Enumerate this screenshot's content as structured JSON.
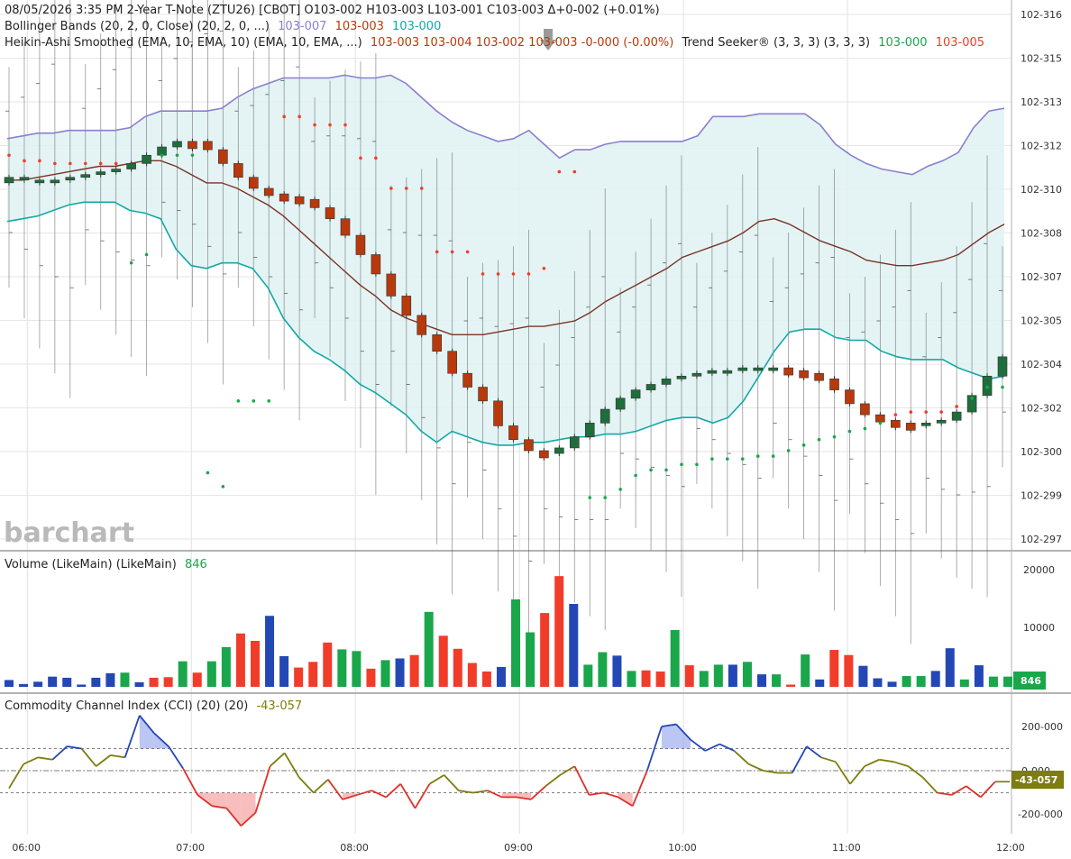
{
  "header": {
    "line1": "08/05/2026  3:35 PM  2-Year T-Note (ZTU26) [CBOT]  O103-002  H103-003  L103-001  C103-003  Δ+0-002 (+0.01%)",
    "bb_label": "Bollinger Bands (20, 2, 0, Close)  (20, 2, 0, ...)",
    "bb_upper": "103-007",
    "bb_mid": "103-003",
    "bb_lower": "103-000",
    "ha_label": "Heikin-Ashi Smoothed (EMA, 10, EMA, 10)  (EMA, 10, EMA, ...)",
    "ha_values": "103-003  103-004  103-002  103-003  -0-000 (-0.00%)",
    "ts_label": "Trend Seeker® (3, 3, 3)  (3, 3, 3)",
    "ts_up": "103-000",
    "ts_down": "103-005"
  },
  "watermark": "barchart",
  "price_axis": [
    "102-316",
    "102-315",
    "102-313",
    "102-312",
    "102-310",
    "102-308",
    "102-307",
    "102-305",
    "102-304",
    "102-302",
    "102-300",
    "102-299",
    "102-297"
  ],
  "volume": {
    "label": "Volume (LikeMain)  (LikeMain)",
    "value": "846",
    "axis": [
      "20000",
      "10000"
    ],
    "tag": "846"
  },
  "cci": {
    "label": "Commodity Channel Index (CCI) (20)  (20)",
    "value": "-43-057",
    "axis": [
      "200-000",
      "0-000",
      "-200-000"
    ],
    "tag": "-43-057"
  },
  "time_axis": [
    "06:00",
    "07:00",
    "08:00",
    "09:00",
    "10:00",
    "11:00",
    "12:00"
  ],
  "colors": {
    "up": "#1aa64a",
    "down": "#f23c2a",
    "neutral": "#2347b5",
    "ha_up": "#1e6e3c",
    "ha_down": "#b8390c",
    "bb_upper": "#8a7fcf",
    "bb_lower": "#12a9a7",
    "bb_mid": "#7a3328",
    "cci": "#7d7d10"
  },
  "chart_data": {
    "type": "candlestick",
    "interval": "5 minutes",
    "price_scale": "32nds",
    "x_start": "05:50",
    "x_end": "12:00",
    "ylim": [
      "102-297",
      "102-316"
    ],
    "bollinger_upper": [
      1.5,
      1.6,
      1.7,
      1.7,
      1.8,
      1.8,
      1.8,
      1.8,
      1.9,
      2.3,
      2.5,
      2.5,
      2.5,
      2.5,
      2.6,
      3.0,
      3.3,
      3.5,
      3.7,
      3.7,
      3.7,
      3.7,
      3.8,
      3.7,
      3.7,
      3.8,
      3.5,
      3.0,
      2.5,
      2.1,
      1.8,
      1.6,
      1.4,
      1.5,
      1.8,
      1.3,
      0.8,
      1.1,
      1.1,
      1.3,
      1.4,
      1.4,
      1.4,
      1.4,
      1.4,
      1.6,
      2.3,
      2.3,
      2.3,
      2.4,
      2.4,
      2.4,
      2.4,
      2.0,
      1.3,
      0.9,
      0.6,
      0.4,
      0.3,
      0.2,
      0.5,
      0.7,
      1.0,
      1.9,
      2.5,
      2.6
    ],
    "bollinger_lower": [
      -1.5,
      -1.4,
      -1.3,
      -1.1,
      -0.9,
      -0.8,
      -0.8,
      -0.8,
      -1.1,
      -1.2,
      -1.4,
      -2.5,
      -3.1,
      -3.2,
      -3.0,
      -3.0,
      -3.2,
      -3.9,
      -5.0,
      -5.7,
      -6.2,
      -6.5,
      -6.9,
      -7.4,
      -7.7,
      -8.1,
      -8.5,
      -9.1,
      -9.5,
      -9.1,
      -9.3,
      -9.5,
      -9.6,
      -9.6,
      -9.5,
      -9.5,
      -9.4,
      -9.3,
      -9.3,
      -9.2,
      -9.2,
      -9.1,
      -8.9,
      -8.7,
      -8.6,
      -8.6,
      -8.8,
      -8.6,
      -8.0,
      -7.1,
      -6.2,
      -5.5,
      -5.4,
      -5.4,
      -5.7,
      -5.8,
      -5.8,
      -6.2,
      -6.4,
      -6.5,
      -6.5,
      -6.5,
      -6.8,
      -7.0,
      -7.2,
      -7.1
    ],
    "bollinger_mid": [
      0.0,
      0.0,
      0.1,
      0.2,
      0.3,
      0.4,
      0.5,
      0.5,
      0.6,
      0.7,
      0.7,
      0.5,
      0.2,
      -0.1,
      -0.1,
      -0.3,
      -0.6,
      -0.9,
      -1.3,
      -1.8,
      -2.3,
      -2.8,
      -3.3,
      -3.8,
      -4.2,
      -4.7,
      -5.0,
      -5.2,
      -5.4,
      -5.6,
      -5.6,
      -5.6,
      -5.5,
      -5.4,
      -5.3,
      -5.3,
      -5.2,
      -5.1,
      -4.8,
      -4.4,
      -4.1,
      -3.8,
      -3.5,
      -3.2,
      -2.8,
      -2.6,
      -2.4,
      -2.2,
      -1.9,
      -1.5,
      -1.4,
      -1.6,
      -1.9,
      -2.2,
      -2.4,
      -2.6,
      -2.9,
      -3.0,
      -3.1,
      -3.1,
      -3.0,
      -2.9,
      -2.7,
      -2.3,
      -1.9,
      -1.6
    ],
    "ha_close": [
      0.1,
      0.0,
      -0.1,
      0.0,
      0.1,
      0.2,
      0.3,
      0.4,
      0.6,
      0.9,
      1.2,
      1.4,
      1.4,
      1.1,
      0.6,
      0.1,
      -0.3,
      -0.5,
      -0.6,
      -0.7,
      -1.0,
      -1.4,
      -2.0,
      -2.7,
      -3.4,
      -4.2,
      -4.9,
      -5.6,
      -6.2,
      -7.0,
      -7.5,
      -8.0,
      -8.9,
      -9.4,
      -9.8,
      -9.9,
      -9.7,
      -9.3,
      -8.8,
      -8.3,
      -7.9,
      -7.6,
      -7.4,
      -7.2,
      -7.1,
      -7.0,
      -6.9,
      -6.9,
      -6.8,
      -6.8,
      -6.8,
      -6.9,
      -7.0,
      -7.2,
      -7.6,
      -8.1,
      -8.5,
      -8.7,
      -8.8,
      -8.8,
      -8.8,
      -8.7,
      -8.4,
      -7.8,
      -7.1,
      -6.4
    ],
    "ha_color": [
      "up",
      "up",
      "up",
      "up",
      "up",
      "up",
      "up",
      "up",
      "up",
      "up",
      "up",
      "up",
      "down",
      "down",
      "down",
      "down",
      "down",
      "down",
      "down",
      "down",
      "down",
      "down",
      "down",
      "down",
      "down",
      "down",
      "down",
      "down",
      "down",
      "down",
      "down",
      "down",
      "down",
      "down",
      "down",
      "down",
      "up",
      "up",
      "up",
      "up",
      "up",
      "up",
      "up",
      "up",
      "up",
      "up",
      "up",
      "up",
      "up",
      "up",
      "up",
      "down",
      "down",
      "down",
      "down",
      "down",
      "down",
      "down",
      "down",
      "down",
      "up",
      "up",
      "up",
      "up",
      "up",
      "up"
    ],
    "ts_dots": [
      0.9,
      0.7,
      0.7,
      0.6,
      0.6,
      0.6,
      0.6,
      0.6,
      -3.0,
      -2.7,
      0.9,
      0.9,
      0.9,
      -10.6,
      -11.1,
      -8.0,
      -8.0,
      -8.0,
      2.3,
      2.3,
      2.0,
      2.0,
      2.0,
      0.8,
      0.8,
      -0.3,
      -0.3,
      -0.3,
      -2.6,
      -2.6,
      -2.6,
      -3.4,
      -3.4,
      -3.4,
      -3.4,
      -3.2,
      0.3,
      0.3,
      -11.5,
      -11.5,
      -11.2,
      -10.7,
      -10.5,
      -10.5,
      -10.3,
      -10.3,
      -10.1,
      -10.1,
      -10.1,
      -10.0,
      -10.0,
      -9.8,
      -9.6,
      -9.4,
      -9.3,
      -9.1,
      -9.0,
      -8.8,
      -8.5,
      -8.4,
      -8.4,
      -8.4,
      -8.2,
      -7.9,
      -7.5,
      -7.5
    ],
    "volume": [
      1200,
      500,
      900,
      1800,
      1600,
      400,
      1600,
      2400,
      2500,
      800,
      1600,
      1700,
      4500,
      2500,
      4500,
      7000,
      9400,
      8100,
      12500,
      5400,
      3400,
      4400,
      7800,
      6600,
      6300,
      3200,
      4700,
      5000,
      5600,
      13200,
      9000,
      6700,
      4200,
      2700,
      3500,
      15400,
      9600,
      13000,
      19500,
      14600,
      3900,
      6100,
      5500,
      2800,
      2900,
      2700,
      10000,
      3800,
      2800,
      3900,
      3900,
      4400,
      2200,
      2200,
      400,
      5700,
      1300,
      6500,
      5600,
      3700,
      1500,
      900,
      1900,
      1900,
      2800,
      6800,
      1300,
      3800,
      1800,
      1800
    ],
    "volume_color": [
      "neutral",
      "neutral",
      "neutral",
      "neutral",
      "neutral",
      "neutral",
      "neutral",
      "neutral",
      "up",
      "neutral",
      "down",
      "down",
      "up",
      "down",
      "up",
      "up",
      "down",
      "down",
      "neutral",
      "neutral",
      "down",
      "down",
      "down",
      "up",
      "up",
      "down",
      "up",
      "neutral",
      "down",
      "up",
      "down",
      "down",
      "down",
      "down",
      "neutral",
      "up",
      "up",
      "down",
      "down",
      "neutral",
      "up",
      "up",
      "neutral",
      "up",
      "down",
      "down",
      "up",
      "down",
      "up",
      "up",
      "neutral",
      "up",
      "neutral",
      "up",
      "down",
      "up",
      "neutral",
      "down",
      "down",
      "neutral",
      "neutral",
      "neutral",
      "up",
      "up",
      "neutral",
      "neutral",
      "up",
      "neutral",
      "up",
      "up"
    ],
    "cci": [
      -80,
      30,
      60,
      50,
      110,
      100,
      20,
      70,
      60,
      250,
      170,
      110,
      10,
      -110,
      -160,
      -170,
      -250,
      -190,
      20,
      80,
      -30,
      -100,
      -40,
      -130,
      -110,
      -90,
      -120,
      -60,
      -170,
      -60,
      -20,
      -90,
      -100,
      -90,
      -120,
      -120,
      -130,
      -70,
      -20,
      20,
      -110,
      -100,
      -120,
      -160,
      0,
      200,
      210,
      140,
      90,
      120,
      90,
      30,
      0,
      -10,
      -10,
      110,
      60,
      40,
      -60,
      20,
      50,
      40,
      20,
      -30,
      -100,
      -110,
      -70,
      -120,
      -50,
      -50
    ],
    "cci_ylim": [
      -250,
      260
    ]
  }
}
